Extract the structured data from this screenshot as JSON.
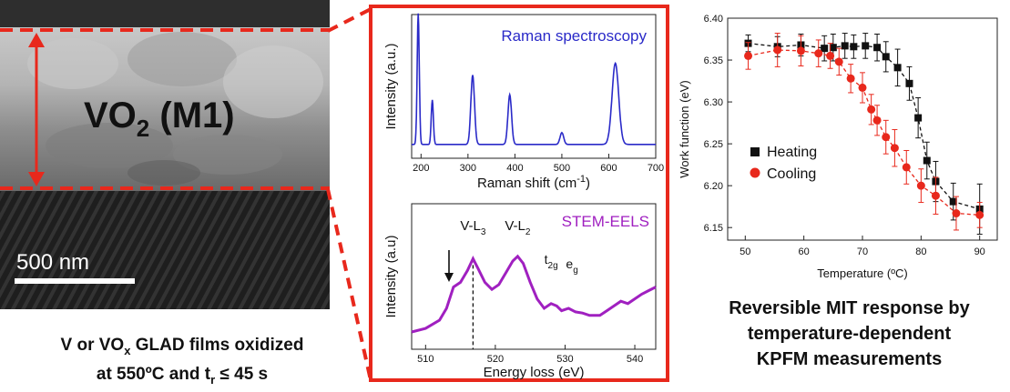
{
  "tem_image": {
    "phase_label": "VO",
    "phase_sub": "2",
    "phase_suffix": " (M1)",
    "scale_bar_label": "500 nm"
  },
  "left_caption": {
    "line1_pre": "V or VO",
    "line1_sub": "x",
    "line1_post": " GLAD films oxidized",
    "line2_pre": "at 550ºC and t",
    "line2_sub": "r",
    "line2_post": " ≤ 45 s"
  },
  "right_caption": {
    "lines": [
      "Reversible MIT response by",
      "temperature-dependent",
      "KPFM measurements"
    ]
  },
  "colors": {
    "accent_red": "#e8281c",
    "raman_blue": "#2a2ac8",
    "eels_purple": "#a020c0"
  },
  "chart_data": [
    {
      "type": "line",
      "title": "Raman spectroscopy",
      "xlabel": "Raman shift (cm-1)",
      "ylabel": "Intensity (a.u.)",
      "xlim": [
        180,
        700
      ],
      "x_ticks": [
        200,
        300,
        400,
        500,
        600,
        700
      ],
      "peaks": [
        {
          "x": 194,
          "y": 1.0
        },
        {
          "x": 224,
          "y": 0.34
        },
        {
          "x": 310,
          "y": 0.53
        },
        {
          "x": 389,
          "y": 0.38
        },
        {
          "x": 500,
          "y": 0.09
        },
        {
          "x": 614,
          "y": 0.62
        }
      ]
    },
    {
      "type": "line",
      "title": "STEM-EELS",
      "xlabel": "Energy loss (eV)",
      "ylabel": "Intensity (a.u)",
      "xlim": [
        508,
        543
      ],
      "x_ticks": [
        510,
        520,
        530,
        540
      ],
      "annotations": [
        {
          "text": "V-L",
          "sub": "3",
          "x": 516.8
        },
        {
          "text": "V-L",
          "sub": "2",
          "x": 523.2
        },
        {
          "text": "t",
          "sub": "2g",
          "x": 528.0
        },
        {
          "text": "e",
          "sub": "g",
          "x": 531.0
        }
      ],
      "series": [
        {
          "x": [
            508,
            510,
            512,
            513,
            514,
            515,
            516,
            516.8,
            517.5,
            518.5,
            519.5,
            520.5,
            521.5,
            522.5,
            523.2,
            524,
            525,
            526,
            527,
            528,
            528.8,
            529.5,
            530.5,
            531.5,
            532.5,
            533.5,
            535,
            536,
            537,
            538,
            539,
            540,
            541,
            542,
            543
          ],
          "y": [
            0.1,
            0.13,
            0.2,
            0.3,
            0.48,
            0.52,
            0.62,
            0.72,
            0.64,
            0.52,
            0.46,
            0.5,
            0.6,
            0.7,
            0.74,
            0.68,
            0.52,
            0.38,
            0.3,
            0.34,
            0.32,
            0.28,
            0.3,
            0.27,
            0.26,
            0.24,
            0.24,
            0.28,
            0.32,
            0.36,
            0.34,
            0.38,
            0.42,
            0.45,
            0.48
          ]
        }
      ]
    },
    {
      "type": "scatter",
      "xlabel": "Temperature (ºC)",
      "ylabel": "Work function (eV)",
      "xlim": [
        47,
        93
      ],
      "ylim": [
        6.135,
        6.4
      ],
      "x_ticks": [
        50,
        60,
        70,
        80,
        90
      ],
      "y_ticks": [
        6.15,
        6.2,
        6.25,
        6.3,
        6.35,
        6.4
      ],
      "series": [
        {
          "name": "Heating",
          "color": "#111111",
          "marker": "square",
          "x": [
            50.5,
            55.5,
            59.5,
            63.5,
            65,
            67,
            68.5,
            70.5,
            72.5,
            74,
            76,
            78,
            79.5,
            81,
            82.5,
            85.5,
            90
          ],
          "y": [
            6.37,
            6.366,
            6.368,
            6.364,
            6.365,
            6.367,
            6.366,
            6.367,
            6.365,
            6.354,
            6.341,
            6.322,
            6.281,
            6.23,
            6.205,
            6.181,
            6.172
          ],
          "err": [
            0.01,
            0.012,
            0.013,
            0.015,
            0.016,
            0.015,
            0.014,
            0.015,
            0.016,
            0.018,
            0.022,
            0.02,
            0.024,
            0.022,
            0.024,
            0.022,
            0.03
          ]
        },
        {
          "name": "Cooling",
          "color": "#e8281c",
          "marker": "circle",
          "x": [
            50.5,
            55.5,
            59.5,
            62.5,
            64.5,
            66,
            68,
            70,
            71.5,
            72.5,
            74,
            75.5,
            77.5,
            80,
            82.5,
            86,
            90
          ],
          "y": [
            6.355,
            6.362,
            6.361,
            6.358,
            6.355,
            6.348,
            6.328,
            6.317,
            6.291,
            6.278,
            6.258,
            6.245,
            6.222,
            6.2,
            6.188,
            6.167,
            6.165
          ],
          "err": [
            0.016,
            0.02,
            0.018,
            0.016,
            0.015,
            0.016,
            0.017,
            0.018,
            0.018,
            0.018,
            0.02,
            0.022,
            0.02,
            0.02,
            0.022,
            0.02,
            0.015
          ]
        }
      ]
    }
  ]
}
